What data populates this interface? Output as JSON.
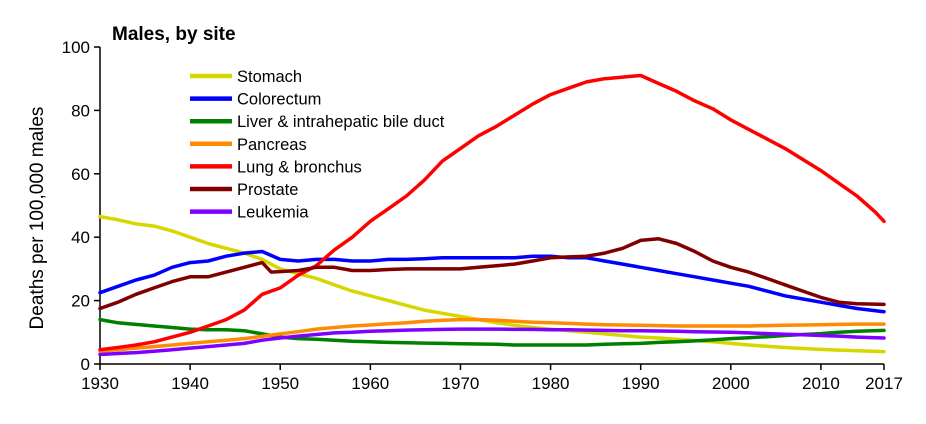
{
  "chart_data": {
    "type": "line",
    "title": "Males, by site",
    "xlabel": "",
    "ylabel": "Deaths per 100,000 males",
    "xlim": [
      1930,
      2017
    ],
    "ylim": [
      0,
      100
    ],
    "x_ticks": [
      1930,
      1940,
      1950,
      1960,
      1970,
      1980,
      1990,
      2000,
      2010,
      2017
    ],
    "y_ticks": [
      0,
      20,
      40,
      60,
      80,
      100
    ],
    "grid": false,
    "legend_position": "top-left",
    "series": [
      {
        "name": "Stomach",
        "color": "#d7d700",
        "points": [
          [
            1930,
            46.5
          ],
          [
            1932,
            45.5
          ],
          [
            1934,
            44.2
          ],
          [
            1936,
            43.5
          ],
          [
            1938,
            42
          ],
          [
            1940,
            40
          ],
          [
            1942,
            38
          ],
          [
            1944,
            36.5
          ],
          [
            1946,
            35
          ],
          [
            1948,
            33
          ],
          [
            1950,
            30
          ],
          [
            1952,
            28.5
          ],
          [
            1954,
            27
          ],
          [
            1956,
            25
          ],
          [
            1958,
            23
          ],
          [
            1960,
            21.5
          ],
          [
            1962,
            20
          ],
          [
            1964,
            18.5
          ],
          [
            1966,
            17
          ],
          [
            1968,
            16
          ],
          [
            1970,
            15
          ],
          [
            1972,
            14
          ],
          [
            1974,
            13
          ],
          [
            1976,
            12.2
          ],
          [
            1978,
            11.5
          ],
          [
            1980,
            11
          ],
          [
            1982,
            10.5
          ],
          [
            1984,
            10
          ],
          [
            1986,
            9.5
          ],
          [
            1988,
            9
          ],
          [
            1990,
            8.5
          ],
          [
            1992,
            8.2
          ],
          [
            1994,
            7.8
          ],
          [
            1996,
            7.4
          ],
          [
            1998,
            7
          ],
          [
            2000,
            6.5
          ],
          [
            2002,
            6
          ],
          [
            2004,
            5.6
          ],
          [
            2006,
            5.2
          ],
          [
            2008,
            4.9
          ],
          [
            2010,
            4.6
          ],
          [
            2012,
            4.4
          ],
          [
            2014,
            4.2
          ],
          [
            2017,
            3.9
          ]
        ]
      },
      {
        "name": "Colorectum",
        "color": "#0000ff",
        "points": [
          [
            1930,
            22.5
          ],
          [
            1932,
            24.5
          ],
          [
            1934,
            26.5
          ],
          [
            1936,
            28
          ],
          [
            1938,
            30.5
          ],
          [
            1940,
            32
          ],
          [
            1942,
            32.5
          ],
          [
            1944,
            34
          ],
          [
            1946,
            35
          ],
          [
            1948,
            35.5
          ],
          [
            1950,
            33
          ],
          [
            1952,
            32.5
          ],
          [
            1954,
            33
          ],
          [
            1956,
            33
          ],
          [
            1958,
            32.5
          ],
          [
            1960,
            32.5
          ],
          [
            1962,
            33
          ],
          [
            1964,
            33
          ],
          [
            1966,
            33.2
          ],
          [
            1968,
            33.5
          ],
          [
            1970,
            33.5
          ],
          [
            1972,
            33.5
          ],
          [
            1974,
            33.5
          ],
          [
            1976,
            33.5
          ],
          [
            1978,
            34
          ],
          [
            1980,
            34
          ],
          [
            1982,
            33.5
          ],
          [
            1984,
            33.5
          ],
          [
            1986,
            32.5
          ],
          [
            1988,
            31.5
          ],
          [
            1990,
            30.5
          ],
          [
            1992,
            29.5
          ],
          [
            1994,
            28.5
          ],
          [
            1996,
            27.5
          ],
          [
            1998,
            26.5
          ],
          [
            2000,
            25.5
          ],
          [
            2002,
            24.5
          ],
          [
            2004,
            23
          ],
          [
            2006,
            21.5
          ],
          [
            2008,
            20.5
          ],
          [
            2010,
            19.5
          ],
          [
            2012,
            18.5
          ],
          [
            2014,
            17.5
          ],
          [
            2017,
            16.5
          ]
        ]
      },
      {
        "name": "Liver & intrahepatic bile duct",
        "color": "#008000",
        "points": [
          [
            1930,
            14
          ],
          [
            1932,
            13
          ],
          [
            1934,
            12.5
          ],
          [
            1936,
            12
          ],
          [
            1938,
            11.5
          ],
          [
            1940,
            11
          ],
          [
            1942,
            10.8
          ],
          [
            1944,
            10.8
          ],
          [
            1946,
            10.5
          ],
          [
            1948,
            9.5
          ],
          [
            1950,
            8.5
          ],
          [
            1952,
            8
          ],
          [
            1954,
            7.8
          ],
          [
            1956,
            7.5
          ],
          [
            1958,
            7.2
          ],
          [
            1960,
            7
          ],
          [
            1962,
            6.8
          ],
          [
            1964,
            6.7
          ],
          [
            1966,
            6.6
          ],
          [
            1968,
            6.5
          ],
          [
            1970,
            6.4
          ],
          [
            1972,
            6.3
          ],
          [
            1974,
            6.2
          ],
          [
            1976,
            6
          ],
          [
            1978,
            6
          ],
          [
            1980,
            6
          ],
          [
            1982,
            6
          ],
          [
            1984,
            6
          ],
          [
            1986,
            6.2
          ],
          [
            1988,
            6.4
          ],
          [
            1990,
            6.5
          ],
          [
            1992,
            6.8
          ],
          [
            1994,
            7
          ],
          [
            1996,
            7.3
          ],
          [
            1998,
            7.6
          ],
          [
            2000,
            8
          ],
          [
            2002,
            8.3
          ],
          [
            2004,
            8.6
          ],
          [
            2006,
            9
          ],
          [
            2008,
            9.3
          ],
          [
            2010,
            9.6
          ],
          [
            2012,
            10
          ],
          [
            2014,
            10.3
          ],
          [
            2017,
            10.6
          ]
        ]
      },
      {
        "name": "Pancreas",
        "color": "#ff8c00",
        "points": [
          [
            1930,
            4
          ],
          [
            1932,
            4.5
          ],
          [
            1934,
            5
          ],
          [
            1936,
            5.5
          ],
          [
            1938,
            6
          ],
          [
            1940,
            6.5
          ],
          [
            1942,
            7
          ],
          [
            1944,
            7.5
          ],
          [
            1946,
            8
          ],
          [
            1948,
            8.7
          ],
          [
            1950,
            9.5
          ],
          [
            1952,
            10.2
          ],
          [
            1954,
            11
          ],
          [
            1956,
            11.5
          ],
          [
            1958,
            12
          ],
          [
            1960,
            12.3
          ],
          [
            1962,
            12.7
          ],
          [
            1964,
            13
          ],
          [
            1966,
            13.5
          ],
          [
            1968,
            13.8
          ],
          [
            1970,
            14
          ],
          [
            1972,
            14
          ],
          [
            1974,
            13.8
          ],
          [
            1976,
            13.5
          ],
          [
            1978,
            13.2
          ],
          [
            1980,
            13
          ],
          [
            1982,
            12.8
          ],
          [
            1984,
            12.6
          ],
          [
            1986,
            12.4
          ],
          [
            1988,
            12.3
          ],
          [
            1990,
            12.2
          ],
          [
            1992,
            12.1
          ],
          [
            1994,
            12
          ],
          [
            1996,
            12
          ],
          [
            1998,
            12
          ],
          [
            2000,
            12
          ],
          [
            2002,
            12
          ],
          [
            2004,
            12.1
          ],
          [
            2006,
            12.2
          ],
          [
            2008,
            12.3
          ],
          [
            2010,
            12.4
          ],
          [
            2012,
            12.5
          ],
          [
            2014,
            12.6
          ],
          [
            2017,
            12.6
          ]
        ]
      },
      {
        "name": "Lung & bronchus",
        "color": "#ff0000",
        "points": [
          [
            1930,
            4.5
          ],
          [
            1932,
            5.2
          ],
          [
            1934,
            6
          ],
          [
            1936,
            7
          ],
          [
            1938,
            8.5
          ],
          [
            1940,
            10
          ],
          [
            1942,
            12
          ],
          [
            1944,
            14
          ],
          [
            1946,
            17
          ],
          [
            1948,
            22
          ],
          [
            1950,
            24
          ],
          [
            1952,
            28
          ],
          [
            1954,
            31
          ],
          [
            1956,
            36
          ],
          [
            1958,
            40
          ],
          [
            1960,
            45
          ],
          [
            1962,
            49
          ],
          [
            1964,
            53
          ],
          [
            1966,
            58
          ],
          [
            1968,
            64
          ],
          [
            1970,
            68
          ],
          [
            1972,
            72
          ],
          [
            1974,
            75
          ],
          [
            1976,
            78.5
          ],
          [
            1978,
            82
          ],
          [
            1980,
            85
          ],
          [
            1982,
            87
          ],
          [
            1984,
            89
          ],
          [
            1986,
            90
          ],
          [
            1988,
            90.5
          ],
          [
            1990,
            91
          ],
          [
            1992,
            88.5
          ],
          [
            1994,
            86
          ],
          [
            1996,
            83
          ],
          [
            1998,
            80.5
          ],
          [
            2000,
            77
          ],
          [
            2002,
            74
          ],
          [
            2004,
            71
          ],
          [
            2006,
            68
          ],
          [
            2008,
            64.5
          ],
          [
            2010,
            61
          ],
          [
            2012,
            57
          ],
          [
            2014,
            53
          ],
          [
            2016,
            48
          ],
          [
            2017,
            45
          ]
        ]
      },
      {
        "name": "Prostate",
        "color": "#800000",
        "points": [
          [
            1930,
            17.5
          ],
          [
            1932,
            19.5
          ],
          [
            1934,
            22
          ],
          [
            1936,
            24
          ],
          [
            1938,
            26
          ],
          [
            1940,
            27.5
          ],
          [
            1942,
            27.5
          ],
          [
            1944,
            29
          ],
          [
            1946,
            30.5
          ],
          [
            1948,
            32
          ],
          [
            1949,
            29
          ],
          [
            1952,
            29.5
          ],
          [
            1954,
            30.5
          ],
          [
            1956,
            30.5
          ],
          [
            1958,
            29.5
          ],
          [
            1960,
            29.5
          ],
          [
            1962,
            29.8
          ],
          [
            1964,
            30
          ],
          [
            1966,
            30
          ],
          [
            1968,
            30
          ],
          [
            1970,
            30
          ],
          [
            1972,
            30.5
          ],
          [
            1974,
            31
          ],
          [
            1976,
            31.5
          ],
          [
            1978,
            32.5
          ],
          [
            1980,
            33.5
          ],
          [
            1982,
            33.8
          ],
          [
            1984,
            34
          ],
          [
            1986,
            35
          ],
          [
            1988,
            36.5
          ],
          [
            1990,
            39
          ],
          [
            1992,
            39.5
          ],
          [
            1994,
            38
          ],
          [
            1996,
            35.5
          ],
          [
            1998,
            32.5
          ],
          [
            2000,
            30.5
          ],
          [
            2002,
            29
          ],
          [
            2004,
            27
          ],
          [
            2006,
            25
          ],
          [
            2008,
            23
          ],
          [
            2010,
            21
          ],
          [
            2012,
            19.5
          ],
          [
            2014,
            19
          ],
          [
            2017,
            18.8
          ]
        ]
      },
      {
        "name": "Leukemia",
        "color": "#8000ff",
        "points": [
          [
            1930,
            3
          ],
          [
            1932,
            3.3
          ],
          [
            1934,
            3.6
          ],
          [
            1936,
            4
          ],
          [
            1938,
            4.5
          ],
          [
            1940,
            5
          ],
          [
            1942,
            5.5
          ],
          [
            1944,
            6
          ],
          [
            1946,
            6.5
          ],
          [
            1948,
            7.5
          ],
          [
            1950,
            8.2
          ],
          [
            1952,
            8.8
          ],
          [
            1954,
            9.3
          ],
          [
            1956,
            9.8
          ],
          [
            1958,
            10
          ],
          [
            1960,
            10.3
          ],
          [
            1962,
            10.5
          ],
          [
            1964,
            10.7
          ],
          [
            1966,
            10.8
          ],
          [
            1968,
            10.9
          ],
          [
            1970,
            11
          ],
          [
            1972,
            11
          ],
          [
            1974,
            11
          ],
          [
            1976,
            10.9
          ],
          [
            1978,
            10.9
          ],
          [
            1980,
            10.8
          ],
          [
            1982,
            10.8
          ],
          [
            1984,
            10.7
          ],
          [
            1986,
            10.6
          ],
          [
            1988,
            10.5
          ],
          [
            1990,
            10.5
          ],
          [
            1992,
            10.4
          ],
          [
            1994,
            10.3
          ],
          [
            1996,
            10.2
          ],
          [
            1998,
            10.1
          ],
          [
            2000,
            10
          ],
          [
            2002,
            9.8
          ],
          [
            2004,
            9.6
          ],
          [
            2006,
            9.4
          ],
          [
            2008,
            9.2
          ],
          [
            2010,
            9
          ],
          [
            2012,
            8.8
          ],
          [
            2014,
            8.5
          ],
          [
            2017,
            8.2
          ]
        ]
      }
    ]
  }
}
